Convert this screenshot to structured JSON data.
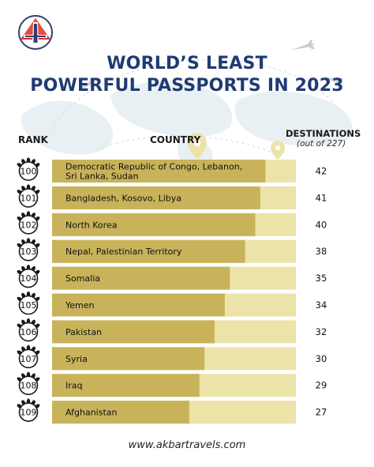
{
  "title_line1": "WORLD’S LEAST",
  "title_line2": "POWERFUL PASSPORTS IN 2023",
  "headers": {
    "rank": "RANK",
    "country": "COUNTRY",
    "destinations": "DESTINATIONS",
    "destinations_sub": "(out of 227)"
  },
  "footer": "www.akbartravels.com",
  "colors": {
    "bar": "#c8b35a",
    "track": "#ece3a9",
    "title": "#1f3b73",
    "badge": "#1a1a1a"
  },
  "chart_data": {
    "type": "bar",
    "orientation": "horizontal",
    "max_value": 227,
    "ranks": [
      "100",
      "101",
      "102",
      "103",
      "104",
      "105",
      "106",
      "107",
      "108",
      "109"
    ],
    "categories": [
      "Democratic Republic of Congo, Lebanon, Sri Lanka, Sudan",
      "Bangladesh, Kosovo, Libya",
      "North Korea",
      "Nepal, Palestinian Territory",
      "Somalia",
      "Yemen",
      "Pakistan",
      "Syria",
      "Iraq",
      "Afghanistan"
    ],
    "category_lines": [
      [
        "Democratic Republic of Congo, Lebanon,",
        "Sri Lanka, Sudan"
      ],
      [
        "Bangladesh, Kosovo, Libya"
      ],
      [
        "North Korea"
      ],
      [
        "Nepal, Palestinian Territory"
      ],
      [
        "Somalia"
      ],
      [
        "Yemen"
      ],
      [
        "Pakistan"
      ],
      [
        "Syria"
      ],
      [
        "Iraq"
      ],
      [
        "Afghanistan"
      ]
    ],
    "values": [
      42,
      41,
      40,
      38,
      35,
      34,
      32,
      30,
      29,
      27
    ],
    "xlabel": "DESTINATIONS (out of 227)",
    "ylabel": "COUNTRY"
  }
}
